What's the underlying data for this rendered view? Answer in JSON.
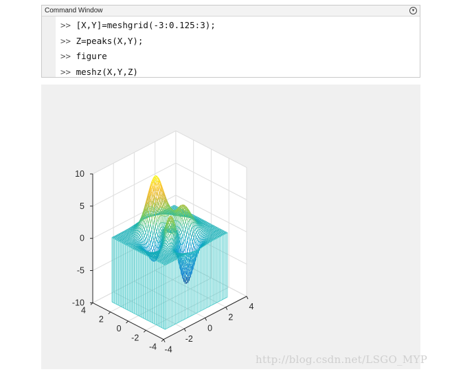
{
  "command_window": {
    "title": "Command Window",
    "menu_icon": "chevron-circle-down-icon",
    "prompt": ">>",
    "lines": [
      "[X,Y]=meshgrid(-3:0.125:3);",
      "Z=peaks(X,Y);",
      "figure",
      "meshz(X,Y,Z)"
    ]
  },
  "figure": {
    "background": "#f0f0f0",
    "colormap": "parula",
    "curtain_color": "#40c6c6"
  },
  "chart_data": {
    "type": "surface",
    "function": "peaks",
    "x_grid": {
      "start": -3,
      "step": 0.125,
      "end": 3
    },
    "y_grid": {
      "start": -3,
      "step": 0.125,
      "end": 3
    },
    "xlim": [
      -4,
      4
    ],
    "ylim": [
      -4,
      4
    ],
    "zlim": [
      -10,
      10
    ],
    "x_ticks": [
      "-4",
      "-2",
      "0",
      "2",
      "4"
    ],
    "y_ticks": [
      "-4",
      "-2",
      "0",
      "2",
      "4"
    ],
    "z_ticks": [
      "-10",
      "-5",
      "0",
      "5",
      "10"
    ],
    "grid": true
  },
  "watermark": "http://blog.csdn.net/LSGO_MYP"
}
